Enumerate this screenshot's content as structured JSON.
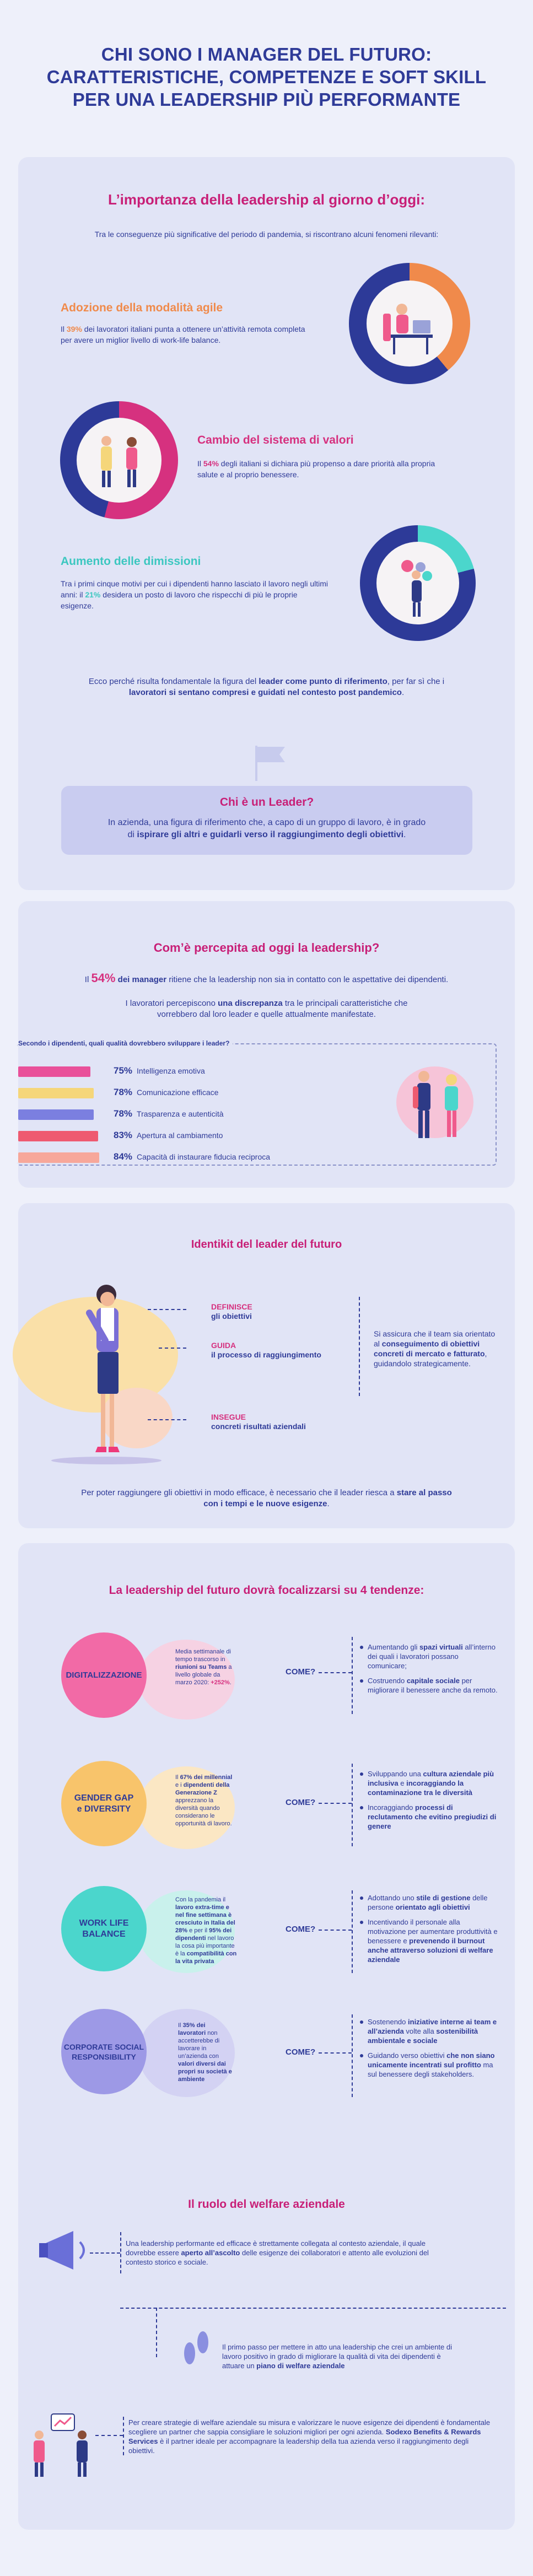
{
  "header": {
    "line1": "CHI SONO I MANAGER DEL FUTURO:",
    "line2": "CARATTERISTICHE, COMPETENZE E SOFT SKILL",
    "line3": "PER UNA LEADERSHIP PIÙ PERFORMANTE"
  },
  "s1": {
    "title": "L’importanza della leadership al giorno d’oggi:",
    "intro": "Tra le conseguenze più significative del periodo di pandemia, si riscontrano alcuni fenomeni rilevanti:",
    "a_title": "Adozione della modalità agile",
    "a_text1": "Il ",
    "a_pct": "39%",
    "a_text2": " dei lavoratori italiani punta a ottenere un’attività remota completa per avere un miglior livello di work-life balance.",
    "b_title": "Cambio del sistema di valori",
    "b_text1": "Il ",
    "b_pct": "54%",
    "b_text2": " degli italiani si dichiara più propenso a dare priorità alla propria salute e al proprio benessere.",
    "c_title": "Aumento delle dimissioni",
    "c_text1": "Tra i primi cinque motivi per cui i dipendenti hanno lasciato il lavoro negli ultimi anni: il ",
    "c_pct": "21%",
    "c_text2": " desidera un posto di lavoro che rispecchi di più le proprie esigenze.",
    "conc1": "Ecco perché risulta fondamentale la figura del ",
    "conc_b1": "leader come punto di riferimento",
    "conc2": ", per far sì che i ",
    "conc_b2": "lavoratori si sentano compresi e guidati nel contesto post pandemico",
    "conc3": ".",
    "leader_title": "Chi è un Leader?",
    "leader_text1": "In azienda, una figura di riferimento che, a capo di un gruppo di lavoro, è in grado",
    "leader_text2a": "di ",
    "leader_text2b": "ispirare gli altri e guidarli verso il raggiungimento degli obiettivi",
    "leader_text2c": "."
  },
  "s2": {
    "title": "Com’è percepita ad oggi la leadership?",
    "p1a": "Il ",
    "p1pct": "54%",
    "p1b": " dei manager",
    "p1c": " ritiene che la leadership non sia in contatto con le aspettative dei dipendenti.",
    "p2a": "I lavoratori percepiscono ",
    "p2b": "una discrepanza",
    "p2c": " tra le principali caratteristiche che vorrebbero dal loro leader e quelle attualmente manifestate.",
    "chart_caption": "Secondo i dipendenti, quali qualità dovrebbero sviluppare i leader?"
  },
  "chart_data": {
    "type": "bar",
    "title": "Secondo i dipendenti, quali qualità dovrebbero sviluppare i leader?",
    "categories": [
      "Intelligenza emotiva",
      "Comunicazione efficace",
      "Trasparenza e autenticità",
      "Apertura al cambiamento",
      "Capacità di instaurare fiducia reciproca"
    ],
    "values": [
      75,
      78,
      78,
      83,
      84
    ],
    "labels": [
      "75%",
      "78%",
      "78%",
      "83%",
      "84%"
    ],
    "colors": [
      "#e9509a",
      "#f5d67a",
      "#7b7fe0",
      "#ee5a70",
      "#f7a79a"
    ]
  },
  "s3": {
    "title": "Identikit del leader del futuro",
    "l1a": "DEFINISCE",
    "l1b": "gli obiettivi",
    "l2a": "GUIDA",
    "l2b": "il processo di raggiungimento",
    "l3a": "INSEGUE",
    "l3b": "concreti risultati aziendali",
    "side1": "Si assicura che il team sia orientato al ",
    "side_b": "conseguimento di obiettivi concreti di mercato e fatturato",
    "side2": ", guidandolo strategicamente.",
    "bottom1": "Per poter raggiungere gli obiettivi in modo efficace, è necessario che il leader riesca a ",
    "bottom_b": "stare al passo con i tempi e le nuove esigenze",
    "bottom2": "."
  },
  "s4": {
    "title": "La leadership del futuro dovrà focalizzarsi su 4 tendenze:",
    "come": "COME?",
    "t1": {
      "label": "DIGITALIZZAZIONE",
      "stat1": "Media settimanale di tempo trascorso in ",
      "stat_b1": "riunioni su Teams",
      "stat2": " a livello globale da marzo 2020: ",
      "stat_b2": "+252%",
      "stat3": ".",
      "b1a": "Aumentando gli ",
      "b1b": "spazi virtuali",
      "b1c": " all’interno dei quali i lavoratori possano comunicare;",
      "b2a": "Costruendo ",
      "b2b": "capitale sociale",
      "b2c": " per migliorare il benessere anche da remoto."
    },
    "t2": {
      "label1": "GENDER GAP",
      "label2": "e DIVERSITY",
      "stat1": "Il ",
      "stat_b1": "67% dei millennial",
      "stat2": " e i ",
      "stat_b2": "dipendenti della Generazione Z",
      "stat3": " apprezzano la diversità quando considerano le opportunità di lavoro.",
      "b1a": "Sviluppando una ",
      "b1b": "cultura aziendale più inclusiva",
      "b1c": " e ",
      "b1d": "incoraggiando la contaminazione tra le diversità",
      "b2a": "Incoraggiando ",
      "b2b": "processi di reclutamento che evitino pregiudizi di genere"
    },
    "t3": {
      "label": "WORK LIFE BALANCE",
      "stat1": "Con la pandemia il ",
      "stat_b1": "lavoro extra-time e nel fine settimana è cresciuto in Italia del 28%",
      "stat2": " e per il ",
      "stat_b2": "95% dei dipendenti",
      "stat3": " nel lavoro la cosa più importante è la ",
      "stat_b3": "compatibilità con la vita privata",
      "b1a": "Adottando uno ",
      "b1b": "stile di gestione",
      "b1c": " delle persone ",
      "b1d": "orientato agli obiettivi",
      "b2a": "Incentivando il personale alla motivazione per aumentare produttività e benessere e ",
      "b2b": "prevenendo il burnout anche attraverso soluzioni di welfare aziendale"
    },
    "t4": {
      "label1": "CORPORATE SOCIAL",
      "label2": "RESPONSIBILITY",
      "stat1": "Il ",
      "stat_b1": "35% dei lavoratori",
      "stat2": " non accetterebbe di lavorare in un’azienda con ",
      "stat_b2": "valori diversi dai propri su società e ambiente",
      "b1a": "Sostenendo ",
      "b1b": "iniziative interne ai team e all’azienda",
      "b1c": " volte alla ",
      "b1d": "sostenibilità ambientale e sociale",
      "b2a": "Guidando verso obiettivi ",
      "b2b": "che non siano unicamente incentrati sul profitto",
      "b2c": " ma sul benessere degli stakeholders."
    }
  },
  "s5": {
    "title": "Il ruolo del welfare aziendale",
    "p1a": "Una leadership performante ed efficace è strettamente collegata al contesto aziendale, il quale dovrebbe essere ",
    "p1b": "aperto all’ascolto",
    "p1c": " delle esigenze dei collaboratori e attento alle evoluzioni del contesto storico e sociale.",
    "p2a": "Il primo passo per mettere in atto una leadership che crei un ambiente di lavoro positivo in grado di migliorare la qualità di vita dei dipendenti è attuare un ",
    "p2b": "piano di welfare aziendale",
    "p3a": "Per creare strategie di welfare aziendale su misura e valorizzare le nuove esigenze dei dipendenti è fondamentale scegliere un partner che sappia consigliare le soluzioni migliori per ogni azienda. ",
    "p3b": "Sodexo Benefits & Rewards Services",
    "p3c": " è il partner ideale per accompagnare la leadership della tua azienda verso il raggiungimento degli obiettivi."
  }
}
